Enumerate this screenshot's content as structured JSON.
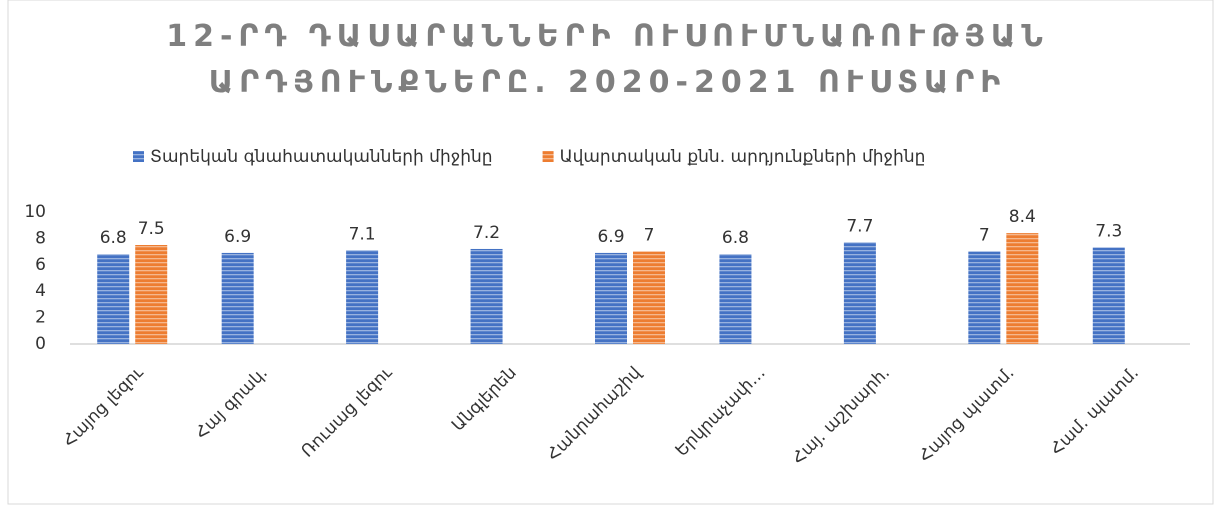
{
  "chart_data": {
    "type": "bar",
    "title": "12-ՐԴ ԴԱՍԱՐԱՆՆԵՐԻ ՈՒՍՈՒՄՆԱՌՈՒԹՅԱՆ ԱՐԴՅՈՒՆՔՆԵՐԸ. 2020-2021 ՈՒՍՏԱՐԻ",
    "categories": [
      "Հայոց լեզու",
      "Հայ գրակ.",
      "Ռուսաց լեզու",
      "Անգլերեն",
      "Հանրահաշիվ",
      "Երկրաչափ…",
      "Հայ. աշխարհ.",
      "Հայոց պատմ.",
      "Համ. պատմ."
    ],
    "series": [
      {
        "name": "Տարեկան գնահատականների միջինը",
        "color": "#4472c4",
        "values": [
          6.8,
          6.9,
          7.1,
          7.2,
          6.9,
          6.8,
          7.7,
          7,
          7.3
        ]
      },
      {
        "name": "Ավարտական քնն. արդյունքների միջինը",
        "color": "#ed7d31",
        "values": [
          7.5,
          null,
          null,
          null,
          7,
          null,
          null,
          8.4,
          null
        ]
      }
    ],
    "ylim": [
      0,
      10
    ],
    "yticks": [
      0,
      2,
      4,
      6,
      8,
      10
    ],
    "grid": false,
    "legend": "top"
  }
}
